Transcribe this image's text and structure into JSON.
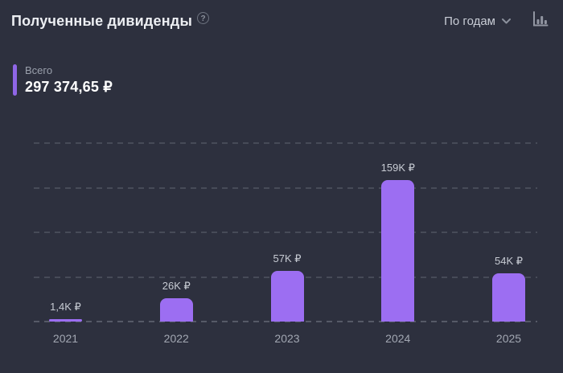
{
  "header": {
    "title": "Полученные дивиденды",
    "help_icon": "?",
    "period_selector": {
      "label": "По годам"
    }
  },
  "summary": {
    "label": "Всего",
    "value": "297 374,65 ₽"
  },
  "chart_data": {
    "type": "bar",
    "title": "Полученные дивиденды",
    "categories": [
      "2021",
      "2022",
      "2023",
      "2024",
      "2025"
    ],
    "values": [
      1400,
      26000,
      57000,
      159000,
      54000
    ],
    "value_labels": [
      "1,4K ₽",
      "26K ₽",
      "57K ₽",
      "159K ₽",
      "54K ₽"
    ],
    "xlabel": "",
    "ylabel": "",
    "ylim": [
      0,
      200000
    ],
    "gridline_values": [
      0,
      50000,
      100000,
      150000,
      200000
    ],
    "grid": "horizontal-dashed",
    "legend": "none",
    "currency": "RUB"
  },
  "colors": {
    "background": "#2d303e",
    "bar": "#9c6ef2",
    "accent": "#8f66e6",
    "title_text": "#eceef2",
    "secondary_text": "#9aa0ac",
    "gridline": "#474b58"
  }
}
